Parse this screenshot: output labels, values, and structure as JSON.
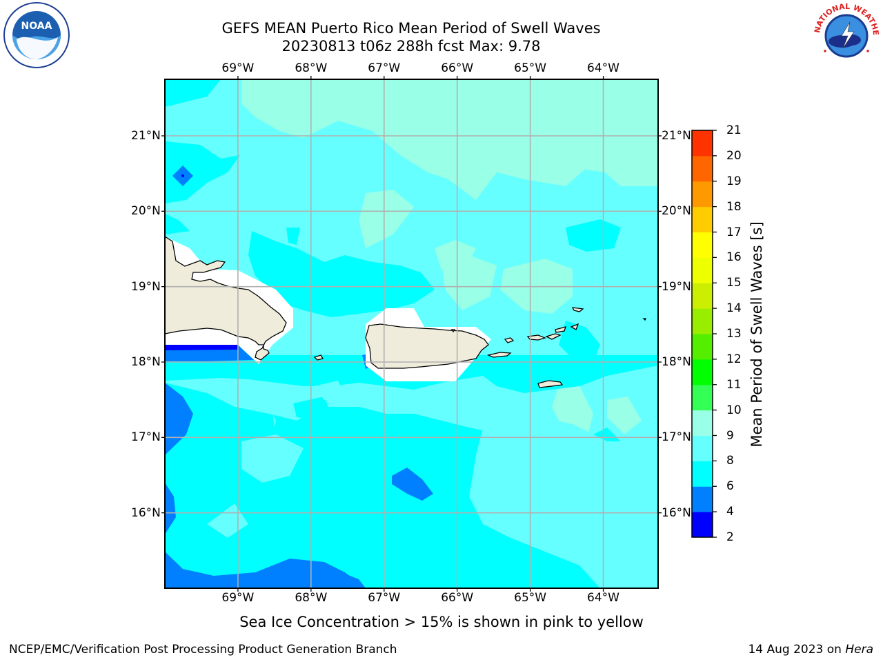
{
  "header": {
    "title_line1": "GEFS MEAN Puerto Rico Mean Period of Swell Waves",
    "title_line2": "20230813 t06z 288h fcst   Max: 9.78"
  },
  "logos": {
    "left": {
      "icon": "noaa-logo",
      "text": "NOAA",
      "ring_text": "NATIONAL OCEANIC AND ATMOSPHERIC ADMINISTRATION · U.S. DEPARTMENT OF COMMERCE"
    },
    "right": {
      "icon": "nws-logo",
      "ring_text": "NATIONAL WEATHER SERVICE"
    }
  },
  "map": {
    "lon_labels": [
      "69°W",
      "68°W",
      "67°W",
      "66°W",
      "65°W",
      "64°W"
    ],
    "lon_values": [
      -69,
      -68,
      -67,
      -66,
      -65,
      -64
    ],
    "lat_labels": [
      "21°N",
      "20°N",
      "19°N",
      "18°N",
      "17°N",
      "16°N"
    ],
    "lat_values": [
      21,
      20,
      19,
      18,
      17,
      16
    ],
    "extent": {
      "lon_min": -70,
      "lon_max": -63.25,
      "lat_min": 15,
      "lat_max": 21.75
    },
    "land_color": "#efecdc",
    "ocean_dominant_period_range": "8-9 s",
    "colors": {
      "2-4": "#0000ff",
      "4-6": "#0080ff",
      "6-8": "#00ffff",
      "8-9": "#66ffff",
      "9-10": "#99ffe6"
    }
  },
  "colorbar": {
    "label": "Mean Period of Swell Waves [s]",
    "ticks": [
      "2",
      "4",
      "6",
      "8",
      "9",
      "10",
      "11",
      "12",
      "13",
      "14",
      "15",
      "16",
      "17",
      "18",
      "19",
      "20",
      "21"
    ],
    "colors": [
      "#0000ff",
      "#0080ff",
      "#00ffff",
      "#66ffff",
      "#99ffe6",
      "#33ff55",
      "#00ff00",
      "#55ee00",
      "#99ee00",
      "#ccee00",
      "#eeff00",
      "#ffff00",
      "#ffcc00",
      "#ff9900",
      "#ff6600",
      "#ff3300",
      "#ff0000"
    ]
  },
  "footer": {
    "caption": "Sea Ice Concentration > 15% is shown in pink to yellow",
    "left": "NCEP/EMC/Verification Post Processing Product Generation Branch",
    "right_date": "14 Aug 2023 on ",
    "right_machine": "Hera"
  }
}
